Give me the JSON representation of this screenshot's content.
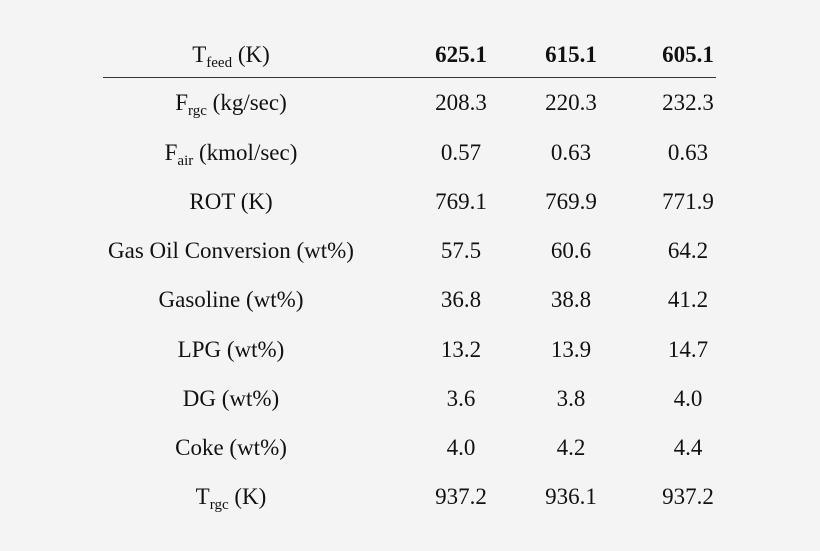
{
  "table": {
    "header": {
      "label": {
        "main": "T",
        "sub": "feed",
        "unit": " (K)"
      },
      "values": [
        "625.1",
        "615.1",
        "605.1"
      ]
    },
    "rows": [
      {
        "label": {
          "main": "F",
          "sub": "rgc",
          "unit": " (kg/sec)"
        },
        "values": [
          "208.3",
          "220.3",
          "232.3"
        ]
      },
      {
        "label": {
          "main": "F",
          "sub": "air",
          "unit": " (kmol/sec)"
        },
        "values": [
          "0.57",
          "0.63",
          "0.63"
        ]
      },
      {
        "label": {
          "main": "ROT (K)"
        },
        "values": [
          "769.1",
          "769.9",
          "771.9"
        ]
      },
      {
        "label": {
          "main": "Gas Oil Conversion (wt%)"
        },
        "values": [
          "57.5",
          "60.6",
          "64.2"
        ]
      },
      {
        "label": {
          "main": "Gasoline (wt%)"
        },
        "values": [
          "36.8",
          "38.8",
          "41.2"
        ]
      },
      {
        "label": {
          "main": "LPG (wt%)"
        },
        "values": [
          "13.2",
          "13.9",
          "14.7"
        ]
      },
      {
        "label": {
          "main": "DG (wt%)"
        },
        "values": [
          "3.6",
          "3.8",
          "4.0"
        ]
      },
      {
        "label": {
          "main": "Coke (wt%)"
        },
        "values": [
          "4.0",
          "4.2",
          "4.4"
        ]
      },
      {
        "label": {
          "main": "T",
          "sub": "rgc",
          "unit": " (K)"
        },
        "values": [
          "937.2",
          "936.1",
          "937.2"
        ]
      }
    ]
  }
}
